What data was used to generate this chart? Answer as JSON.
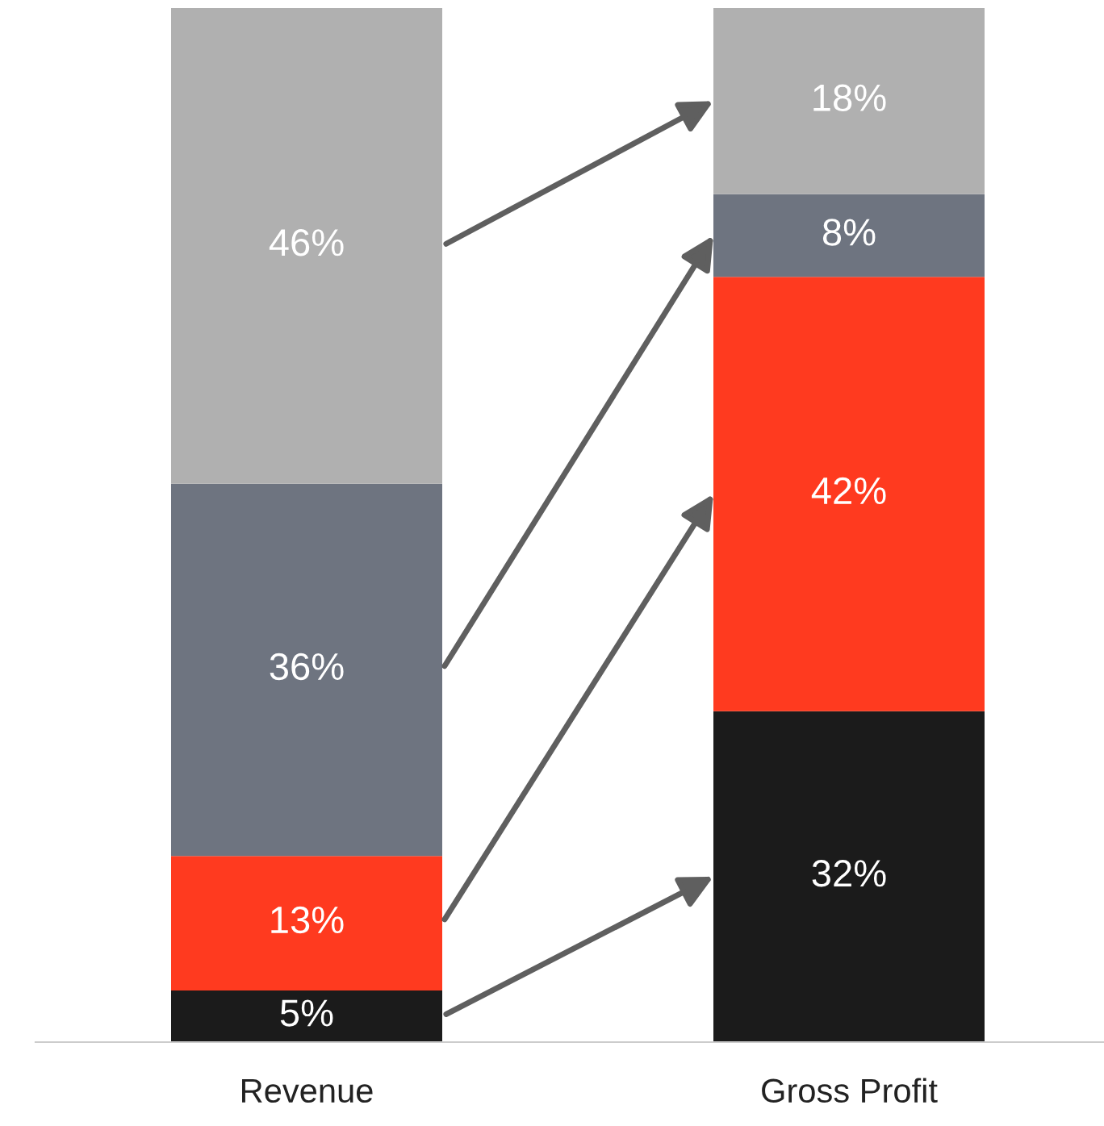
{
  "chart_data": {
    "type": "bar",
    "stacked": true,
    "categories": [
      "Revenue",
      "Gross Profit"
    ],
    "series": [
      {
        "color": "#1b1b1b",
        "values": [
          5,
          32
        ],
        "value_labels": [
          "5%",
          "32%"
        ]
      },
      {
        "color": "#ff3a1f",
        "values": [
          13,
          42
        ],
        "value_labels": [
          "13%",
          "42%"
        ]
      },
      {
        "color": "#6e7480",
        "values": [
          36,
          8
        ],
        "value_labels": [
          "36%",
          "8%"
        ]
      },
      {
        "color": "#b0b0b0",
        "values": [
          46,
          18
        ],
        "value_labels": [
          "46%",
          "18%"
        ]
      }
    ],
    "ylim": [
      0,
      100
    ],
    "grid": false,
    "legend": false,
    "tick_labels": "x"
  }
}
